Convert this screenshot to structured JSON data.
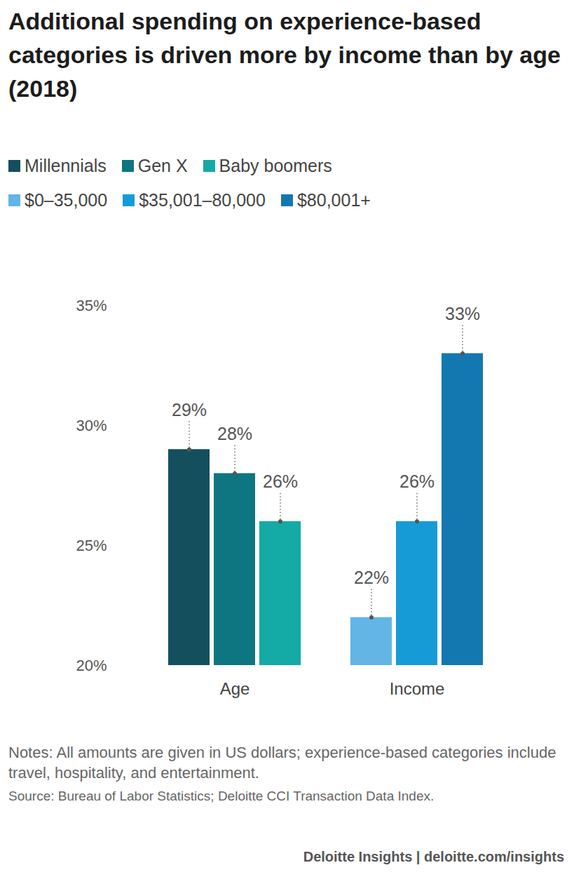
{
  "chart_data": {
    "type": "bar",
    "title": "Additional spending on experience-based categories is driven more by income than by age (2018)",
    "categories": [
      "Age",
      "Income"
    ],
    "series": [
      {
        "name": "Millennials",
        "color": "#134f5c",
        "values": [
          29,
          null
        ],
        "value_labels": [
          "29%",
          null
        ]
      },
      {
        "name": "Gen X",
        "color": "#0d7680",
        "values": [
          28,
          null
        ],
        "value_labels": [
          "28%",
          null
        ]
      },
      {
        "name": "Baby boomers",
        "color": "#14aaa5",
        "values": [
          26,
          null
        ],
        "value_labels": [
          "26%",
          null
        ]
      },
      {
        "name": "$0–35,000",
        "color": "#62b5e5",
        "values": [
          null,
          22
        ],
        "value_labels": [
          null,
          "22%"
        ]
      },
      {
        "name": "$35,001–80,000",
        "color": "#179bd7",
        "values": [
          null,
          26
        ],
        "value_labels": [
          null,
          "26%"
        ]
      },
      {
        "name": "$80,001+",
        "color": "#1378b0",
        "values": [
          null,
          33
        ],
        "value_labels": [
          null,
          "33%"
        ]
      }
    ],
    "ylim": [
      20,
      35
    ],
    "yticks": [
      {
        "value": 20,
        "label": "20%"
      },
      {
        "value": 25,
        "label": "25%"
      },
      {
        "value": 30,
        "label": "30%"
      },
      {
        "value": 35,
        "label": "35%"
      }
    ],
    "data_labels": true,
    "notes": "Notes: All amounts are given in US dollars; experience-based categories include travel, hospitality, and entertainment.",
    "source": "Source: Bureau of Labor Statistics; Deloitte CCI Transaction Data Index.",
    "credit": "Deloitte Insights | deloitte.com/insights"
  }
}
